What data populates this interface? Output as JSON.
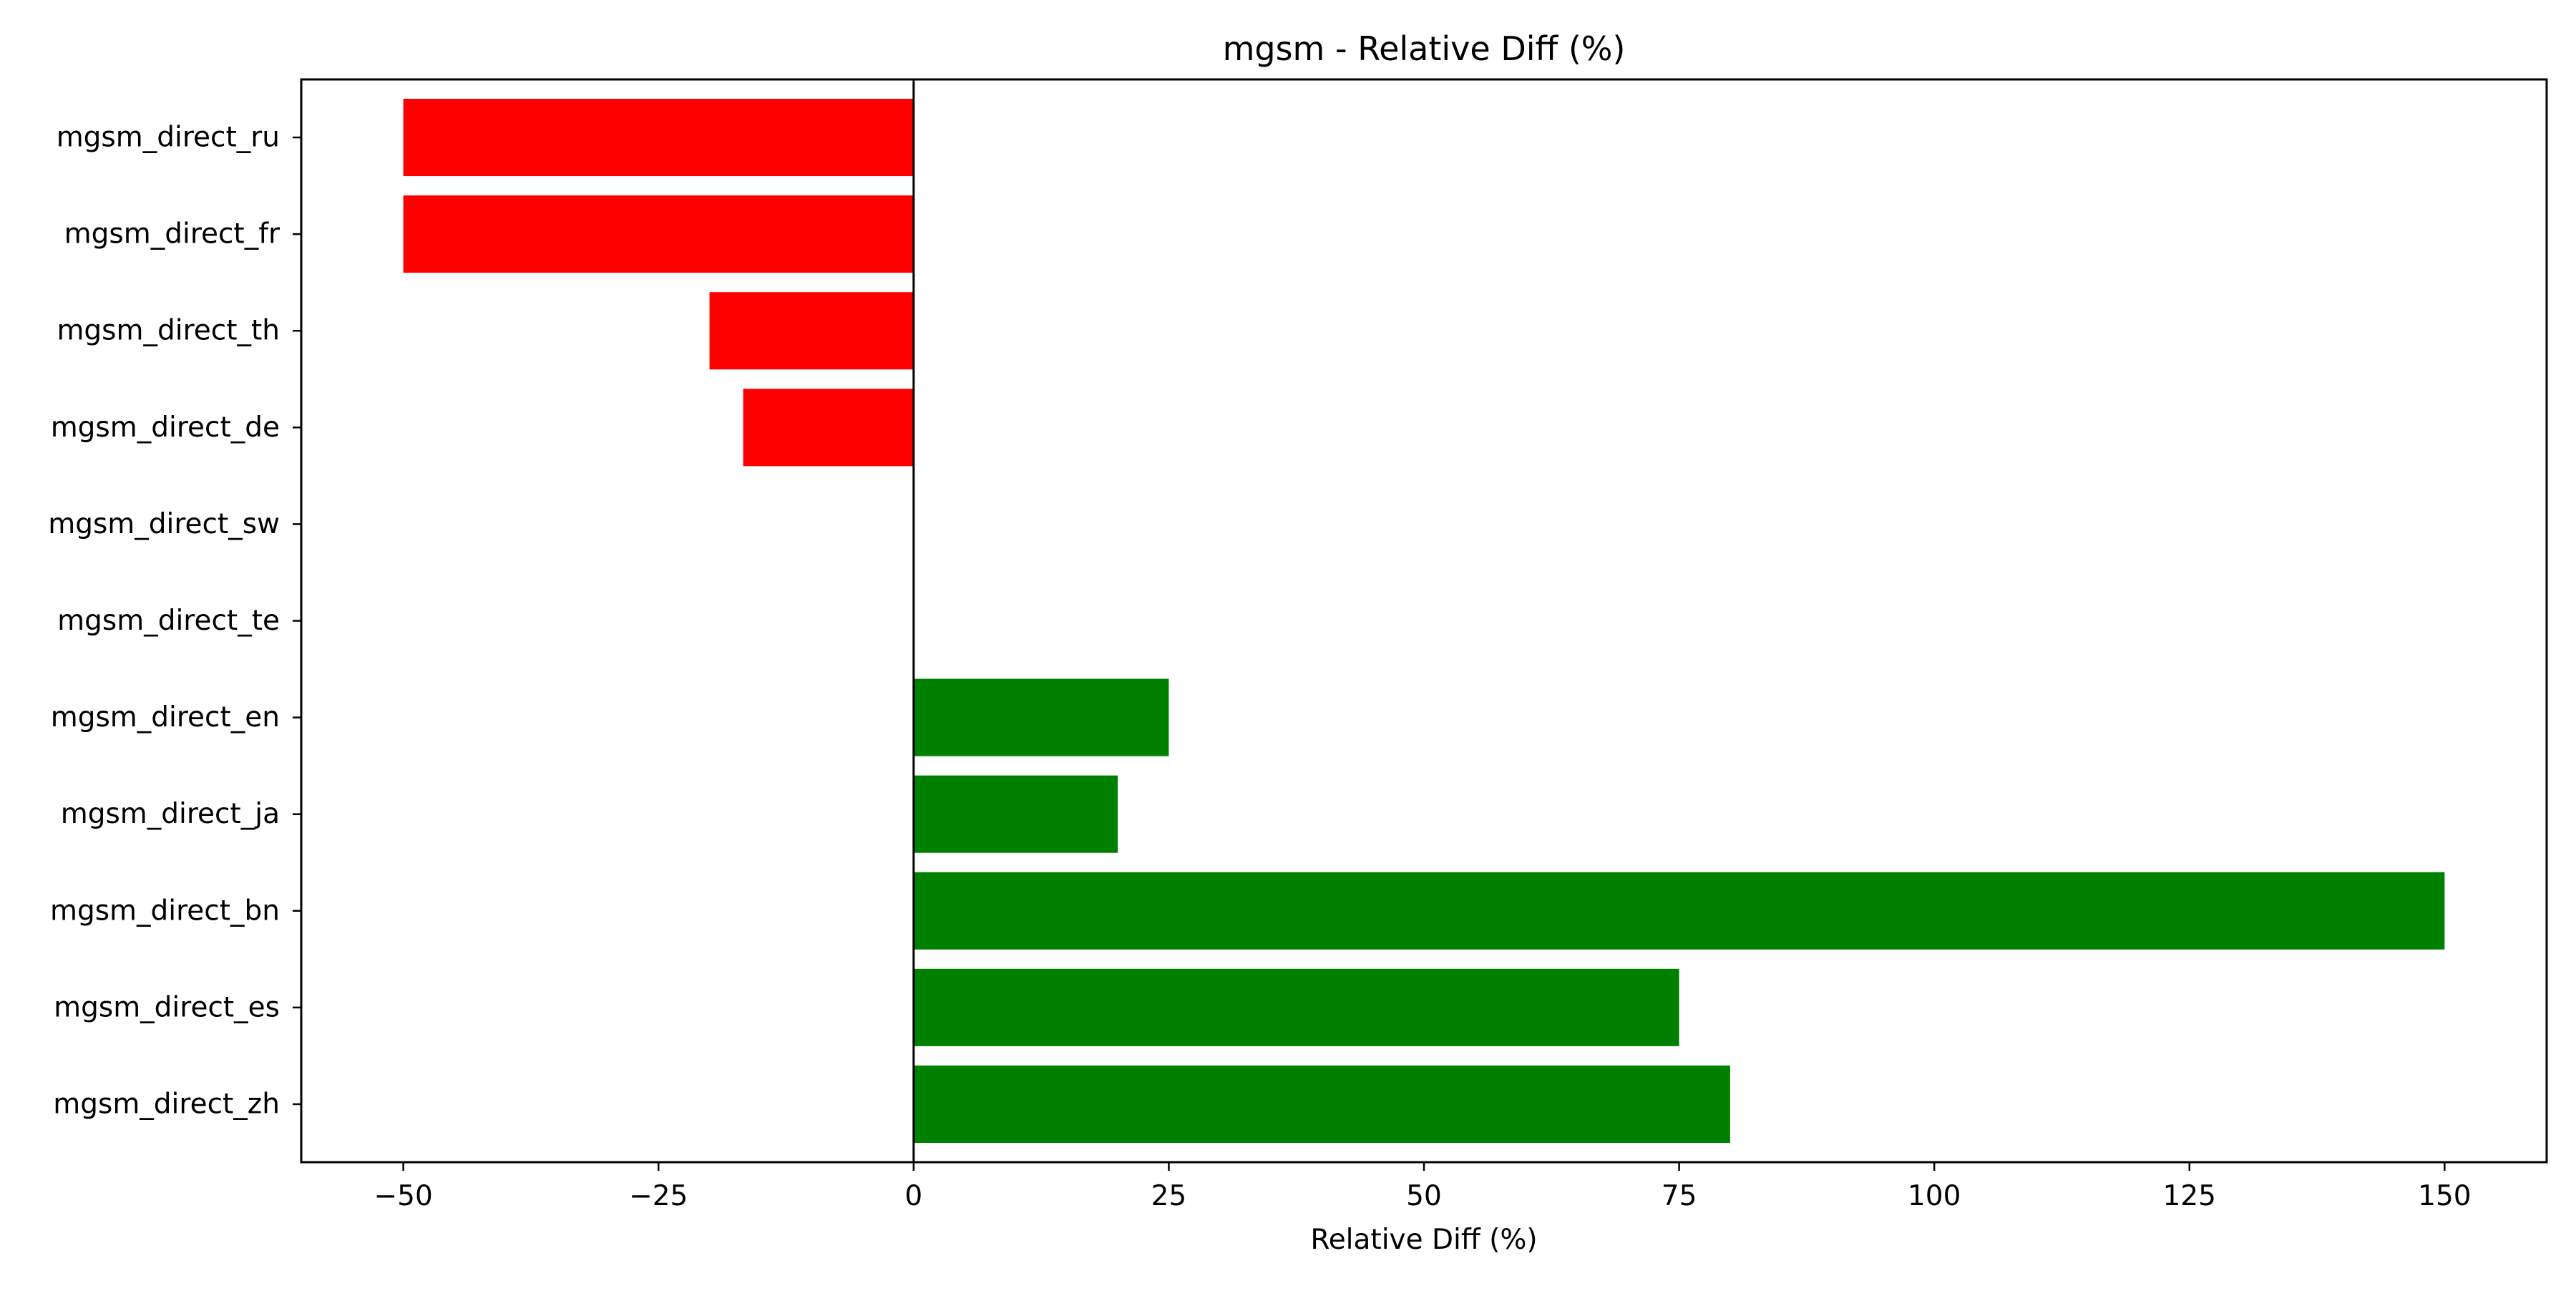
{
  "chart_data": {
    "type": "bar",
    "orientation": "horizontal",
    "title": "mgsm - Relative Diff (%)",
    "xlabel": "Relative Diff (%)",
    "ylabel": "",
    "xlim": [
      -60,
      160
    ],
    "xticks": [
      -50,
      -25,
      0,
      25,
      50,
      75,
      100,
      125,
      150
    ],
    "xtick_labels": [
      "−50",
      "−25",
      "0",
      "25",
      "50",
      "75",
      "100",
      "125",
      "150"
    ],
    "categories": [
      "mgsm_direct_ru",
      "mgsm_direct_fr",
      "mgsm_direct_th",
      "mgsm_direct_de",
      "mgsm_direct_sw",
      "mgsm_direct_te",
      "mgsm_direct_en",
      "mgsm_direct_ja",
      "mgsm_direct_bn",
      "mgsm_direct_es",
      "mgsm_direct_zh"
    ],
    "values": [
      -50,
      -50,
      -20,
      -16.7,
      0,
      0,
      25,
      20,
      150,
      75,
      80
    ],
    "colors": {
      "negative": "#ff0000",
      "positive": "#008000",
      "zero_line": "#000000",
      "frame": "#000000"
    },
    "zero_line": true,
    "grid": false,
    "legend": "none"
  }
}
